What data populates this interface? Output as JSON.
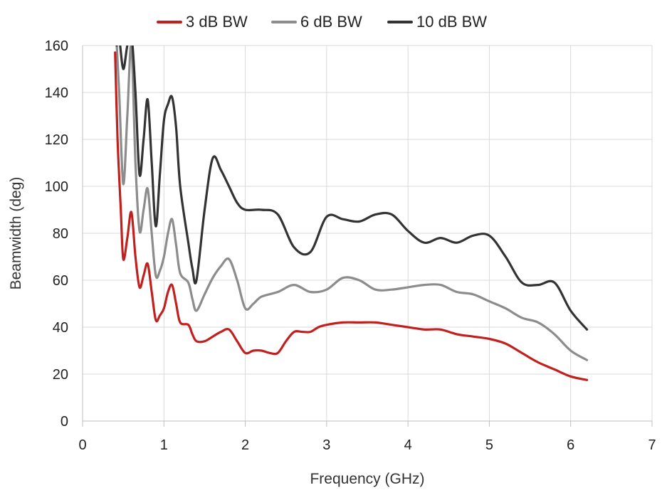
{
  "chart_data": {
    "type": "line",
    "title": "",
    "xlabel": "Frequency (GHz)",
    "ylabel": "Beamwidth (deg)",
    "xlim": [
      0,
      7
    ],
    "ylim": [
      0,
      160
    ],
    "xticks": [
      0,
      1,
      2,
      3,
      4,
      5,
      6,
      7
    ],
    "yticks": [
      0,
      20,
      40,
      60,
      80,
      100,
      120,
      140,
      160
    ],
    "grid": true,
    "legend": "top-center",
    "series": [
      {
        "name": "3 dB BW",
        "color": "#c0211f",
        "points": [
          [
            0.4,
            157
          ],
          [
            0.43,
            120
          ],
          [
            0.47,
            90
          ],
          [
            0.5,
            69
          ],
          [
            0.55,
            78
          ],
          [
            0.6,
            89
          ],
          [
            0.65,
            70
          ],
          [
            0.7,
            57
          ],
          [
            0.75,
            62
          ],
          [
            0.8,
            67
          ],
          [
            0.85,
            55
          ],
          [
            0.9,
            43
          ],
          [
            0.95,
            45
          ],
          [
            1.0,
            48
          ],
          [
            1.05,
            55
          ],
          [
            1.1,
            58
          ],
          [
            1.15,
            50
          ],
          [
            1.2,
            42
          ],
          [
            1.3,
            41
          ],
          [
            1.35,
            37
          ],
          [
            1.4,
            34
          ],
          [
            1.5,
            34
          ],
          [
            1.6,
            36
          ],
          [
            1.7,
            38
          ],
          [
            1.8,
            39
          ],
          [
            1.9,
            34
          ],
          [
            2.0,
            29
          ],
          [
            2.1,
            30
          ],
          [
            2.2,
            30
          ],
          [
            2.3,
            29
          ],
          [
            2.4,
            29
          ],
          [
            2.5,
            34
          ],
          [
            2.6,
            38
          ],
          [
            2.7,
            38
          ],
          [
            2.8,
            38
          ],
          [
            2.9,
            40
          ],
          [
            3.0,
            41
          ],
          [
            3.2,
            42
          ],
          [
            3.4,
            42
          ],
          [
            3.6,
            42
          ],
          [
            3.8,
            41
          ],
          [
            4.0,
            40
          ],
          [
            4.2,
            39
          ],
          [
            4.4,
            39
          ],
          [
            4.6,
            37
          ],
          [
            4.8,
            36
          ],
          [
            5.0,
            35
          ],
          [
            5.2,
            33
          ],
          [
            5.4,
            29
          ],
          [
            5.6,
            25
          ],
          [
            5.8,
            22
          ],
          [
            6.0,
            19
          ],
          [
            6.2,
            17.5
          ]
        ]
      },
      {
        "name": "6 dB BW",
        "color": "#8c8c8c",
        "points": [
          [
            0.42,
            160
          ],
          [
            0.45,
            140
          ],
          [
            0.5,
            101
          ],
          [
            0.55,
            130
          ],
          [
            0.6,
            160
          ],
          [
            0.65,
            110
          ],
          [
            0.7,
            81
          ],
          [
            0.75,
            90
          ],
          [
            0.8,
            99
          ],
          [
            0.85,
            80
          ],
          [
            0.9,
            62
          ],
          [
            0.95,
            64
          ],
          [
            1.0,
            70
          ],
          [
            1.05,
            80
          ],
          [
            1.1,
            86
          ],
          [
            1.15,
            75
          ],
          [
            1.2,
            63
          ],
          [
            1.3,
            59
          ],
          [
            1.35,
            52
          ],
          [
            1.4,
            47
          ],
          [
            1.5,
            54
          ],
          [
            1.6,
            61
          ],
          [
            1.7,
            66
          ],
          [
            1.8,
            69
          ],
          [
            1.9,
            60
          ],
          [
            2.0,
            48
          ],
          [
            2.1,
            50
          ],
          [
            2.2,
            53
          ],
          [
            2.4,
            55
          ],
          [
            2.6,
            58
          ],
          [
            2.8,
            55
          ],
          [
            3.0,
            56
          ],
          [
            3.2,
            61
          ],
          [
            3.4,
            60
          ],
          [
            3.6,
            56
          ],
          [
            3.8,
            56
          ],
          [
            4.0,
            57
          ],
          [
            4.2,
            58
          ],
          [
            4.4,
            58
          ],
          [
            4.6,
            55
          ],
          [
            4.8,
            54
          ],
          [
            5.0,
            51
          ],
          [
            5.2,
            48
          ],
          [
            5.4,
            44
          ],
          [
            5.6,
            42
          ],
          [
            5.8,
            37
          ],
          [
            6.0,
            30
          ],
          [
            6.2,
            26
          ]
        ]
      },
      {
        "name": "10 dB BW",
        "color": "#333333",
        "points": [
          [
            0.42,
            160
          ],
          [
            0.45,
            163
          ],
          [
            0.5,
            150
          ],
          [
            0.55,
            160
          ],
          [
            0.6,
            165
          ],
          [
            0.65,
            140
          ],
          [
            0.7,
            105
          ],
          [
            0.75,
            120
          ],
          [
            0.8,
            137
          ],
          [
            0.85,
            110
          ],
          [
            0.9,
            83
          ],
          [
            0.95,
            105
          ],
          [
            1.0,
            128
          ],
          [
            1.05,
            135
          ],
          [
            1.1,
            138
          ],
          [
            1.15,
            125
          ],
          [
            1.2,
            100
          ],
          [
            1.3,
            76
          ],
          [
            1.35,
            65
          ],
          [
            1.4,
            60
          ],
          [
            1.5,
            90
          ],
          [
            1.6,
            112
          ],
          [
            1.7,
            107
          ],
          [
            1.8,
            100
          ],
          [
            1.9,
            93
          ],
          [
            2.0,
            90
          ],
          [
            2.2,
            90
          ],
          [
            2.4,
            88
          ],
          [
            2.6,
            74
          ],
          [
            2.8,
            72
          ],
          [
            3.0,
            87
          ],
          [
            3.2,
            86
          ],
          [
            3.4,
            85
          ],
          [
            3.6,
            88
          ],
          [
            3.8,
            88
          ],
          [
            4.0,
            81
          ],
          [
            4.2,
            76
          ],
          [
            4.4,
            78
          ],
          [
            4.6,
            76
          ],
          [
            4.8,
            79
          ],
          [
            5.0,
            79
          ],
          [
            5.2,
            70
          ],
          [
            5.4,
            59
          ],
          [
            5.6,
            58
          ],
          [
            5.8,
            59
          ],
          [
            6.0,
            47
          ],
          [
            6.2,
            39
          ]
        ]
      }
    ]
  }
}
